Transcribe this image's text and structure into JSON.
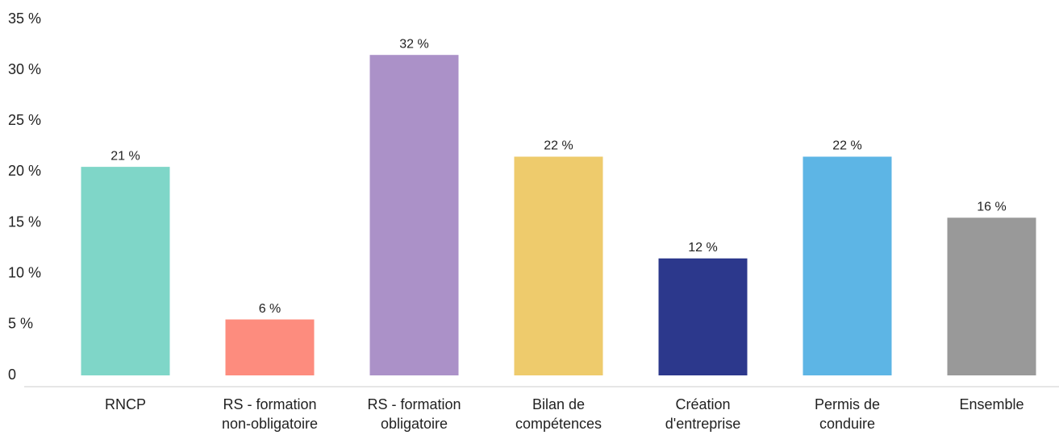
{
  "chart_data": {
    "type": "bar",
    "categories": [
      "RNCP",
      "RS - formation\nnon-obligatoire",
      "RS - formation\nobligatoire",
      "Bilan de\ncompétences",
      "Création\nd'entreprise",
      "Permis de\nconduire",
      "Ensemble"
    ],
    "values": [
      20.5,
      5.5,
      31.5,
      21.5,
      11.5,
      21.5,
      15.5
    ],
    "value_labels": [
      "21 %",
      "6 %",
      "32 %",
      "22 %",
      "12 %",
      "22 %",
      "16 %"
    ],
    "colors": [
      "#7fd6c8",
      "#fd8c7e",
      "#ab91c8",
      "#eecb6c",
      "#2c388c",
      "#5db5e5",
      "#999999"
    ],
    "ylim": [
      0,
      35
    ],
    "yticks": [
      0,
      {
        "value": 5,
        "label": "5 %"
      },
      {
        "value": 10,
        "label": "10 %"
      },
      {
        "value": 15,
        "label": "15 %"
      },
      {
        "value": 20,
        "label": "20 %"
      },
      {
        "value": 25,
        "label": "25 %"
      },
      {
        "value": 30,
        "label": "30 %"
      },
      {
        "value": 35,
        "label": "35 %"
      }
    ],
    "grid": false
  }
}
